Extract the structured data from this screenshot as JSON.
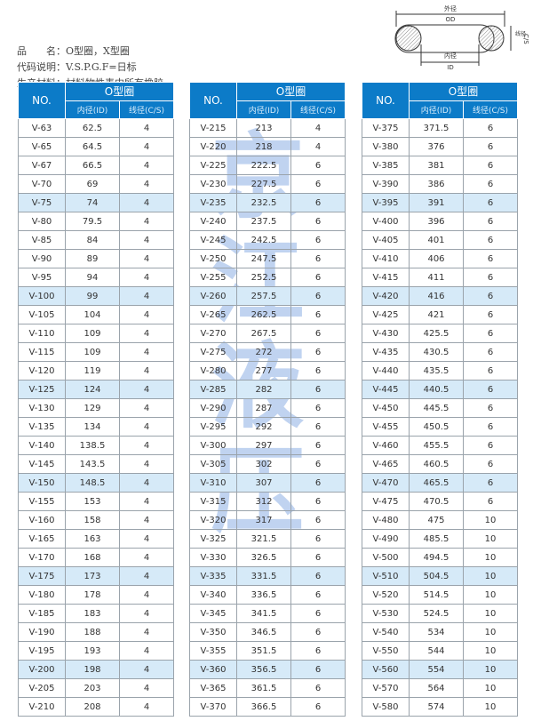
{
  "info": {
    "line1_label": "品　　名：",
    "line1_value": "O型圈，X型圈",
    "line2_label": "代码说明：",
    "line2_value": "V.S.P.G.F=日标",
    "line3_label": "生产材料：",
    "line3_value": "材料物性表中所有橡胶。"
  },
  "diagram": {
    "outer_cn": "外径",
    "outer_en": "OD",
    "inner_cn": "内径",
    "inner_en": "ID",
    "cs_cn": "线径",
    "cs_en": "C/S"
  },
  "header": {
    "no": "NO.",
    "type": "O型圈",
    "id": "内径(ID)",
    "cs": "线径(C/S)"
  },
  "watermark": "京江液压",
  "colors": {
    "header": "#0c7bc8",
    "highlight_row": "#d6eaf8"
  },
  "tables": [
    {
      "rows": [
        [
          "V-63",
          "62.5",
          "4"
        ],
        [
          "V-65",
          "64.5",
          "4"
        ],
        [
          "V-67",
          "66.5",
          "4"
        ],
        [
          "V-70",
          "69",
          "4"
        ],
        [
          "V-75",
          "74",
          "4"
        ],
        [
          "V-80",
          "79.5",
          "4"
        ],
        [
          "V-85",
          "84",
          "4"
        ],
        [
          "V-90",
          "89",
          "4"
        ],
        [
          "V-95",
          "94",
          "4"
        ],
        [
          "V-100",
          "99",
          "4"
        ],
        [
          "V-105",
          "104",
          "4"
        ],
        [
          "V-110",
          "109",
          "4"
        ],
        [
          "V-115",
          "109",
          "4"
        ],
        [
          "V-120",
          "119",
          "4"
        ],
        [
          "V-125",
          "124",
          "4"
        ],
        [
          "V-130",
          "129",
          "4"
        ],
        [
          "V-135",
          "134",
          "4"
        ],
        [
          "V-140",
          "138.5",
          "4"
        ],
        [
          "V-145",
          "143.5",
          "4"
        ],
        [
          "V-150",
          "148.5",
          "4"
        ],
        [
          "V-155",
          "153",
          "4"
        ],
        [
          "V-160",
          "158",
          "4"
        ],
        [
          "V-165",
          "163",
          "4"
        ],
        [
          "V-170",
          "168",
          "4"
        ],
        [
          "V-175",
          "173",
          "4"
        ],
        [
          "V-180",
          "178",
          "4"
        ],
        [
          "V-185",
          "183",
          "4"
        ],
        [
          "V-190",
          "188",
          "4"
        ],
        [
          "V-195",
          "193",
          "4"
        ],
        [
          "V-200",
          "198",
          "4"
        ],
        [
          "V-205",
          "203",
          "4"
        ],
        [
          "V-210",
          "208",
          "4"
        ]
      ]
    },
    {
      "rows": [
        [
          "V-215",
          "213",
          "4"
        ],
        [
          "V-220",
          "218",
          "4"
        ],
        [
          "V-225",
          "222.5",
          "6"
        ],
        [
          "V-230",
          "227.5",
          "6"
        ],
        [
          "V-235",
          "232.5",
          "6"
        ],
        [
          "V-240",
          "237.5",
          "6"
        ],
        [
          "V-245",
          "242.5",
          "6"
        ],
        [
          "V-250",
          "247.5",
          "6"
        ],
        [
          "V-255",
          "252.5",
          "6"
        ],
        [
          "V-260",
          "257.5",
          "6"
        ],
        [
          "V-265",
          "262.5",
          "6"
        ],
        [
          "V-270",
          "267.5",
          "6"
        ],
        [
          "V-275",
          "272",
          "6"
        ],
        [
          "V-280",
          "277",
          "6"
        ],
        [
          "V-285",
          "282",
          "6"
        ],
        [
          "V-290",
          "287",
          "6"
        ],
        [
          "V-295",
          "292",
          "6"
        ],
        [
          "V-300",
          "297",
          "6"
        ],
        [
          "V-305",
          "302",
          "6"
        ],
        [
          "V-310",
          "307",
          "6"
        ],
        [
          "V-315",
          "312",
          "6"
        ],
        [
          "V-320",
          "317",
          "6"
        ],
        [
          "V-325",
          "321.5",
          "6"
        ],
        [
          "V-330",
          "326.5",
          "6"
        ],
        [
          "V-335",
          "331.5",
          "6"
        ],
        [
          "V-340",
          "336.5",
          "6"
        ],
        [
          "V-345",
          "341.5",
          "6"
        ],
        [
          "V-350",
          "346.5",
          "6"
        ],
        [
          "V-355",
          "351.5",
          "6"
        ],
        [
          "V-360",
          "356.5",
          "6"
        ],
        [
          "V-365",
          "361.5",
          "6"
        ],
        [
          "V-370",
          "366.5",
          "6"
        ]
      ]
    },
    {
      "rows": [
        [
          "V-375",
          "371.5",
          "6"
        ],
        [
          "V-380",
          "376",
          "6"
        ],
        [
          "V-385",
          "381",
          "6"
        ],
        [
          "V-390",
          "386",
          "6"
        ],
        [
          "V-395",
          "391",
          "6"
        ],
        [
          "V-400",
          "396",
          "6"
        ],
        [
          "V-405",
          "401",
          "6"
        ],
        [
          "V-410",
          "406",
          "6"
        ],
        [
          "V-415",
          "411",
          "6"
        ],
        [
          "V-420",
          "416",
          "6"
        ],
        [
          "V-425",
          "421",
          "6"
        ],
        [
          "V-430",
          "425.5",
          "6"
        ],
        [
          "V-435",
          "430.5",
          "6"
        ],
        [
          "V-440",
          "435.5",
          "6"
        ],
        [
          "V-445",
          "440.5",
          "6"
        ],
        [
          "V-450",
          "445.5",
          "6"
        ],
        [
          "V-455",
          "450.5",
          "6"
        ],
        [
          "V-460",
          "455.5",
          "6"
        ],
        [
          "V-465",
          "460.5",
          "6"
        ],
        [
          "V-470",
          "465.5",
          "6"
        ],
        [
          "V-475",
          "470.5",
          "6"
        ],
        [
          "V-480",
          "475",
          "10"
        ],
        [
          "V-490",
          "485.5",
          "10"
        ],
        [
          "V-500",
          "494.5",
          "10"
        ],
        [
          "V-510",
          "504.5",
          "10"
        ],
        [
          "V-520",
          "514.5",
          "10"
        ],
        [
          "V-530",
          "524.5",
          "10"
        ],
        [
          "V-540",
          "534",
          "10"
        ],
        [
          "V-550",
          "544",
          "10"
        ],
        [
          "V-560",
          "554",
          "10"
        ],
        [
          "V-570",
          "564",
          "10"
        ],
        [
          "V-580",
          "574",
          "10"
        ]
      ]
    }
  ]
}
